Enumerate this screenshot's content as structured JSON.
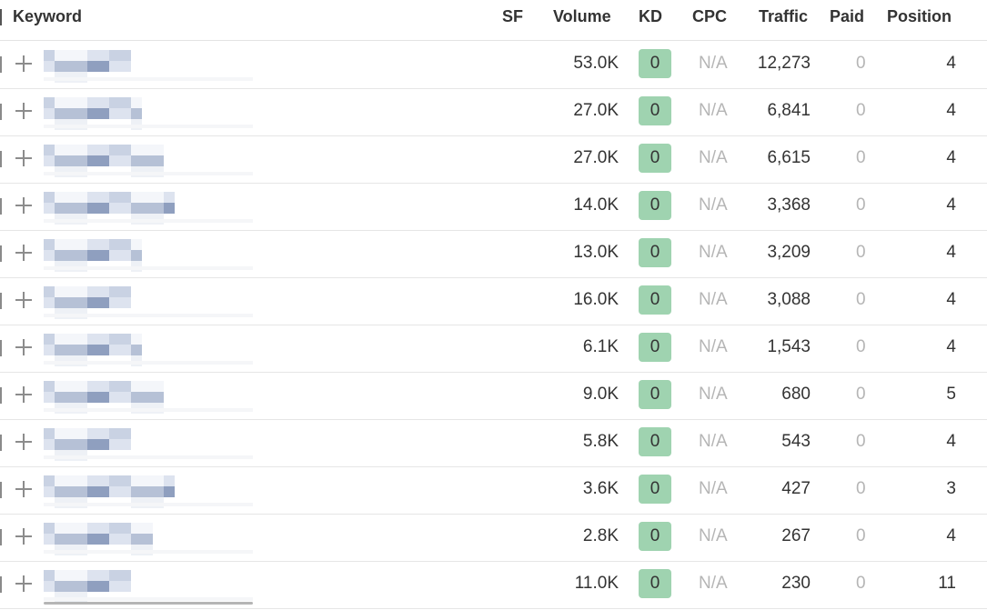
{
  "columns": {
    "keyword": "Keyword",
    "sf": "SF",
    "volume": "Volume",
    "kd": "KD",
    "cpc": "CPC",
    "traffic": "Traffic",
    "paid": "Paid",
    "position": "Position"
  },
  "rows": [
    {
      "volume": "53.0K",
      "kd": "0",
      "cpc": "N/A",
      "traffic": "12,273",
      "paid": "0",
      "position": "4"
    },
    {
      "volume": "27.0K",
      "kd": "0",
      "cpc": "N/A",
      "traffic": "6,841",
      "paid": "0",
      "position": "4"
    },
    {
      "volume": "27.0K",
      "kd": "0",
      "cpc": "N/A",
      "traffic": "6,615",
      "paid": "0",
      "position": "4"
    },
    {
      "volume": "14.0K",
      "kd": "0",
      "cpc": "N/A",
      "traffic": "3,368",
      "paid": "0",
      "position": "4"
    },
    {
      "volume": "13.0K",
      "kd": "0",
      "cpc": "N/A",
      "traffic": "3,209",
      "paid": "0",
      "position": "4"
    },
    {
      "volume": "16.0K",
      "kd": "0",
      "cpc": "N/A",
      "traffic": "3,088",
      "paid": "0",
      "position": "4"
    },
    {
      "volume": "6.1K",
      "kd": "0",
      "cpc": "N/A",
      "traffic": "1,543",
      "paid": "0",
      "position": "4"
    },
    {
      "volume": "9.0K",
      "kd": "0",
      "cpc": "N/A",
      "traffic": "680",
      "paid": "0",
      "position": "5"
    },
    {
      "volume": "5.8K",
      "kd": "0",
      "cpc": "N/A",
      "traffic": "543",
      "paid": "0",
      "position": "4"
    },
    {
      "volume": "3.6K",
      "kd": "0",
      "cpc": "N/A",
      "traffic": "427",
      "paid": "0",
      "position": "3"
    },
    {
      "volume": "2.8K",
      "kd": "0",
      "cpc": "N/A",
      "traffic": "267",
      "paid": "0",
      "position": "4"
    },
    {
      "volume": "11.0K",
      "kd": "0",
      "cpc": "N/A",
      "traffic": "230",
      "paid": "0",
      "position": "11"
    }
  ],
  "colors": {
    "kd_badge": "#9fd3b0",
    "muted_text": "#b5b5b5",
    "blur_dark": "#8f9fbf",
    "blur_light": "#dde3ef"
  },
  "icons": {
    "expand": "plus-icon"
  }
}
